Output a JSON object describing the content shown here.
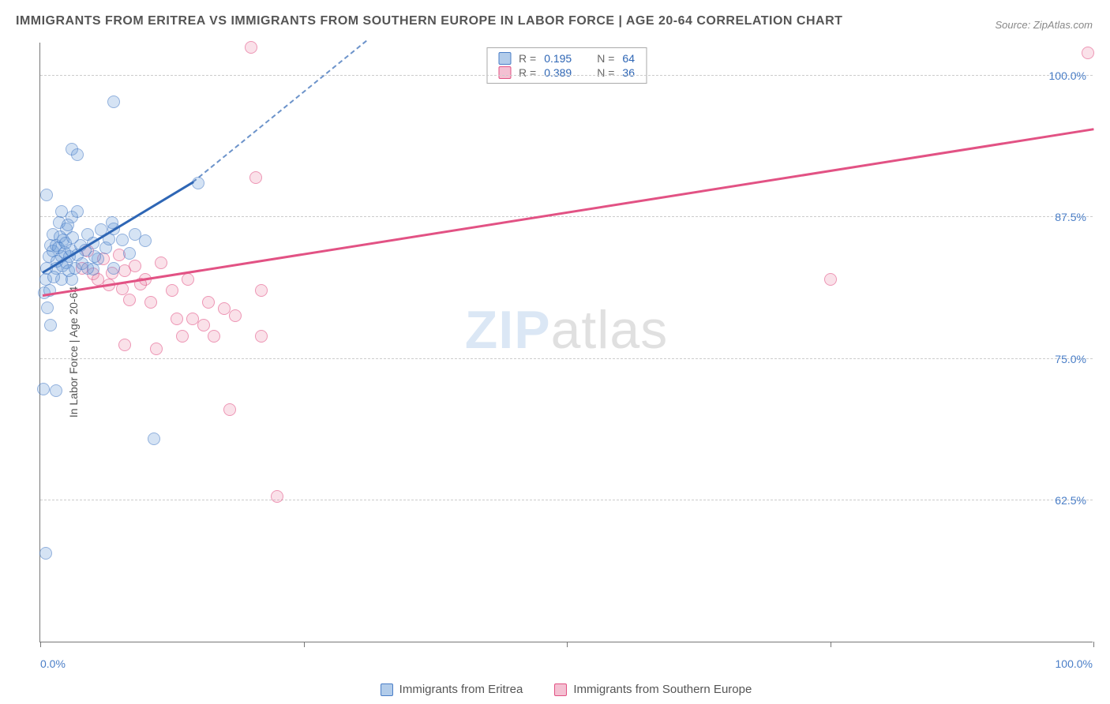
{
  "title": "IMMIGRANTS FROM ERITREA VS IMMIGRANTS FROM SOUTHERN EUROPE IN LABOR FORCE | AGE 20-64 CORRELATION CHART",
  "source": "Source: ZipAtlas.com",
  "watermark": {
    "brand": "ZIP",
    "suffix": "atlas"
  },
  "axes": {
    "y_label": "In Labor Force | Age 20-64",
    "x_range": [
      0,
      100
    ],
    "y_range": [
      50,
      103
    ],
    "y_ticks": [
      62.5,
      75.0,
      87.5,
      100.0
    ],
    "y_tick_labels": [
      "62.5%",
      "75.0%",
      "87.5%",
      "100.0%"
    ],
    "x_ticks": [
      0,
      25,
      50,
      75,
      100
    ],
    "x_tick_labels": {
      "min": "0.0%",
      "max": "100.0%"
    },
    "grid_color": "#cccccc",
    "axis_color": "#777777",
    "tick_label_color": "#4a7ec7",
    "axis_label_color": "#555555",
    "tick_label_fontsize": 14
  },
  "series": {
    "blue": {
      "label": "Immigrants from Eritrea",
      "color_fill": "rgba(102,154,214,0.45)",
      "color_stroke": "#4a7ec7",
      "R": "0.195",
      "N": "64",
      "trend": {
        "x1": 0.2,
        "y1": 82.5,
        "x2": 14.5,
        "y2": 90.5,
        "dash_to_x": 31,
        "dash_to_y": 103
      },
      "points": [
        [
          0.5,
          82.0
        ],
        [
          0.6,
          83.0
        ],
        [
          0.8,
          84.0
        ],
        [
          1.0,
          85.0
        ],
        [
          1.2,
          84.5
        ],
        [
          1.2,
          86.0
        ],
        [
          1.5,
          83.0
        ],
        [
          1.5,
          85.0
        ],
        [
          1.8,
          87.0
        ],
        [
          2.0,
          82.0
        ],
        [
          2.0,
          84.0
        ],
        [
          2.0,
          88.0
        ],
        [
          2.2,
          85.5
        ],
        [
          2.5,
          83.5
        ],
        [
          2.5,
          86.5
        ],
        [
          2.8,
          84.0
        ],
        [
          3.0,
          82.0
        ],
        [
          3.0,
          87.5
        ],
        [
          0.4,
          80.8
        ],
        [
          1.0,
          78.0
        ],
        [
          3.0,
          93.5
        ],
        [
          3.5,
          93.0
        ],
        [
          0.7,
          79.5
        ],
        [
          0.9,
          81.0
        ],
        [
          1.3,
          82.2
        ],
        [
          1.6,
          83.6
        ],
        [
          1.7,
          84.8
        ],
        [
          1.9,
          85.8
        ],
        [
          2.1,
          83.2
        ],
        [
          2.3,
          84.4
        ],
        [
          2.4,
          85.2
        ],
        [
          2.6,
          86.8
        ],
        [
          2.7,
          82.8
        ],
        [
          2.9,
          84.6
        ],
        [
          3.1,
          85.7
        ],
        [
          3.3,
          83.0
        ],
        [
          3.5,
          84.2
        ],
        [
          3.8,
          85.0
        ],
        [
          4.0,
          83.4
        ],
        [
          4.3,
          84.6
        ],
        [
          4.5,
          86.0
        ],
        [
          5.0,
          85.2
        ],
        [
          5.5,
          83.8
        ],
        [
          5.8,
          86.4
        ],
        [
          6.2,
          84.8
        ],
        [
          6.5,
          85.6
        ],
        [
          7.0,
          86.5
        ],
        [
          7.0,
          83.0
        ],
        [
          7.8,
          85.5
        ],
        [
          8.5,
          84.3
        ],
        [
          9.0,
          86.0
        ],
        [
          10.0,
          85.4
        ],
        [
          15.0,
          90.5
        ],
        [
          0.3,
          72.3
        ],
        [
          1.5,
          72.2
        ],
        [
          5.0,
          82.9
        ],
        [
          0.6,
          89.5
        ],
        [
          7.0,
          97.7
        ],
        [
          10.8,
          67.9
        ],
        [
          0.5,
          57.8
        ],
        [
          3.5,
          88.0
        ],
        [
          5.2,
          84.0
        ],
        [
          6.8,
          87.0
        ],
        [
          4.5,
          83.0
        ]
      ]
    },
    "pink": {
      "label": "Immigrants from Southern Europe",
      "color_fill": "rgba(233,130,165,0.4)",
      "color_stroke": "#e25284",
      "R": "0.389",
      "N": "36",
      "trend": {
        "x1": 0.2,
        "y1": 80.5,
        "x2": 100,
        "y2": 95.2
      },
      "points": [
        [
          4.0,
          83.0
        ],
        [
          5.0,
          82.5
        ],
        [
          6.0,
          83.8
        ],
        [
          6.5,
          81.5
        ],
        [
          7.5,
          84.2
        ],
        [
          8.0,
          82.8
        ],
        [
          8.5,
          80.2
        ],
        [
          9.0,
          83.2
        ],
        [
          10.0,
          82.0
        ],
        [
          10.5,
          80.0
        ],
        [
          11.5,
          83.5
        ],
        [
          12.5,
          81.0
        ],
        [
          13.0,
          78.5
        ],
        [
          13.5,
          77.0
        ],
        [
          14.5,
          78.5
        ],
        [
          15.5,
          78.0
        ],
        [
          16.5,
          77.0
        ],
        [
          16.0,
          80.0
        ],
        [
          18.5,
          78.8
        ],
        [
          21.0,
          81.0
        ],
        [
          21.0,
          77.0
        ],
        [
          75.0,
          82.0
        ],
        [
          8.0,
          76.2
        ],
        [
          11.0,
          75.9
        ],
        [
          18.0,
          70.5
        ],
        [
          20.5,
          91.0
        ],
        [
          22.5,
          62.8
        ],
        [
          20.0,
          102.5
        ],
        [
          99.5,
          102.0
        ],
        [
          4.5,
          84.5
        ],
        [
          5.5,
          82.0
        ],
        [
          6.8,
          82.6
        ],
        [
          7.8,
          81.2
        ],
        [
          9.5,
          81.6
        ],
        [
          14.0,
          82.0
        ],
        [
          17.5,
          79.4
        ]
      ]
    }
  },
  "legend_top": {
    "r_label": "R =",
    "n_label": "N =",
    "border_color": "#aaaaaa",
    "fontsize": 14
  },
  "legend_bottom": {
    "fontsize": 15,
    "text_color": "#555555"
  },
  "title_style": {
    "color": "#555555",
    "fontsize": 16,
    "weight": "bold"
  },
  "source_style": {
    "color": "#888888",
    "fontsize": 13
  },
  "point_style": {
    "diameter": 16,
    "opacity": 0.6
  },
  "background_color": "#ffffff"
}
